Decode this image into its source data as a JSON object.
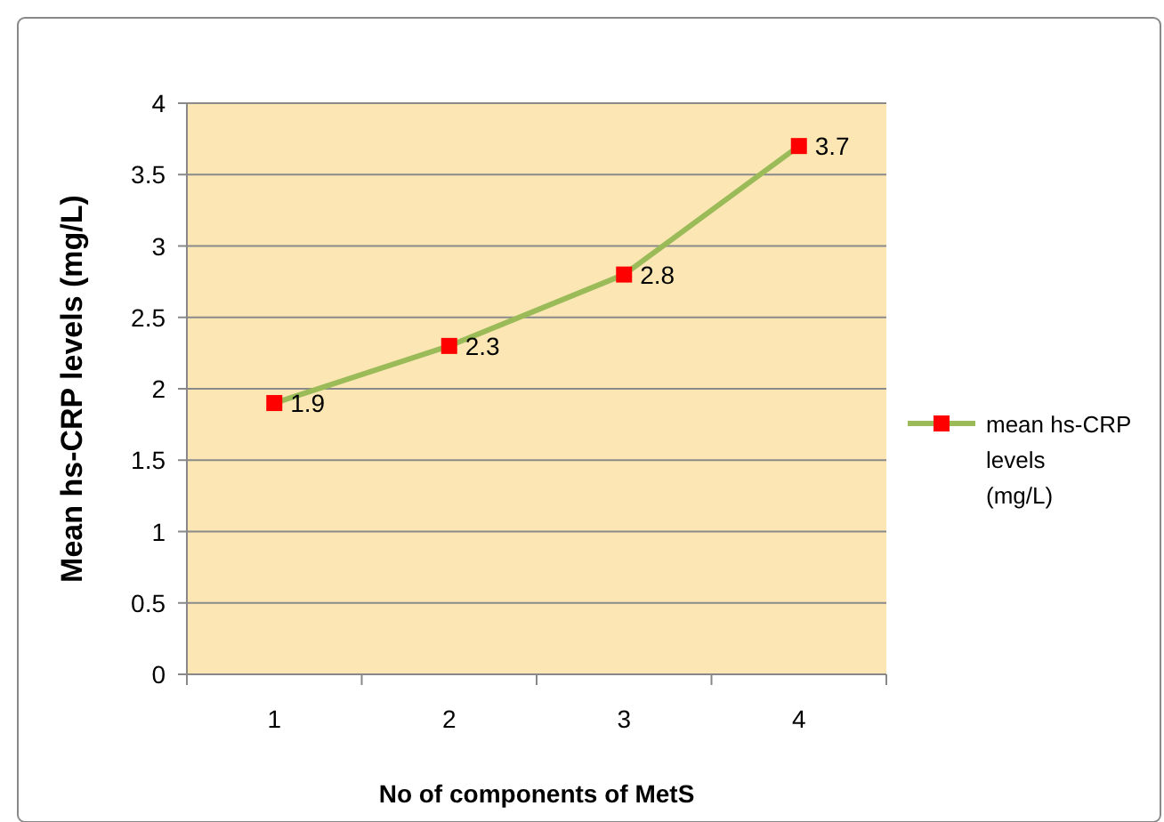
{
  "chart_data": {
    "type": "line",
    "xlabel": "No of components of MetS",
    "ylabel": "Mean hs-CRP levels (mg/L)",
    "categories": [
      "1",
      "2",
      "3",
      "4"
    ],
    "series": [
      {
        "name": "mean hs-CRP   levels (mg/L)",
        "color": "#9bbb59",
        "values": [
          1.9,
          2.3,
          2.8,
          3.7
        ]
      }
    ],
    "ylim": [
      0,
      4
    ],
    "yticks": [
      0,
      0.5,
      1,
      1.5,
      2,
      2.5,
      3,
      3.5,
      4
    ],
    "grid": "y",
    "legend": "right",
    "marker": "square",
    "line_style": "solid",
    "data_labels": true
  }
}
